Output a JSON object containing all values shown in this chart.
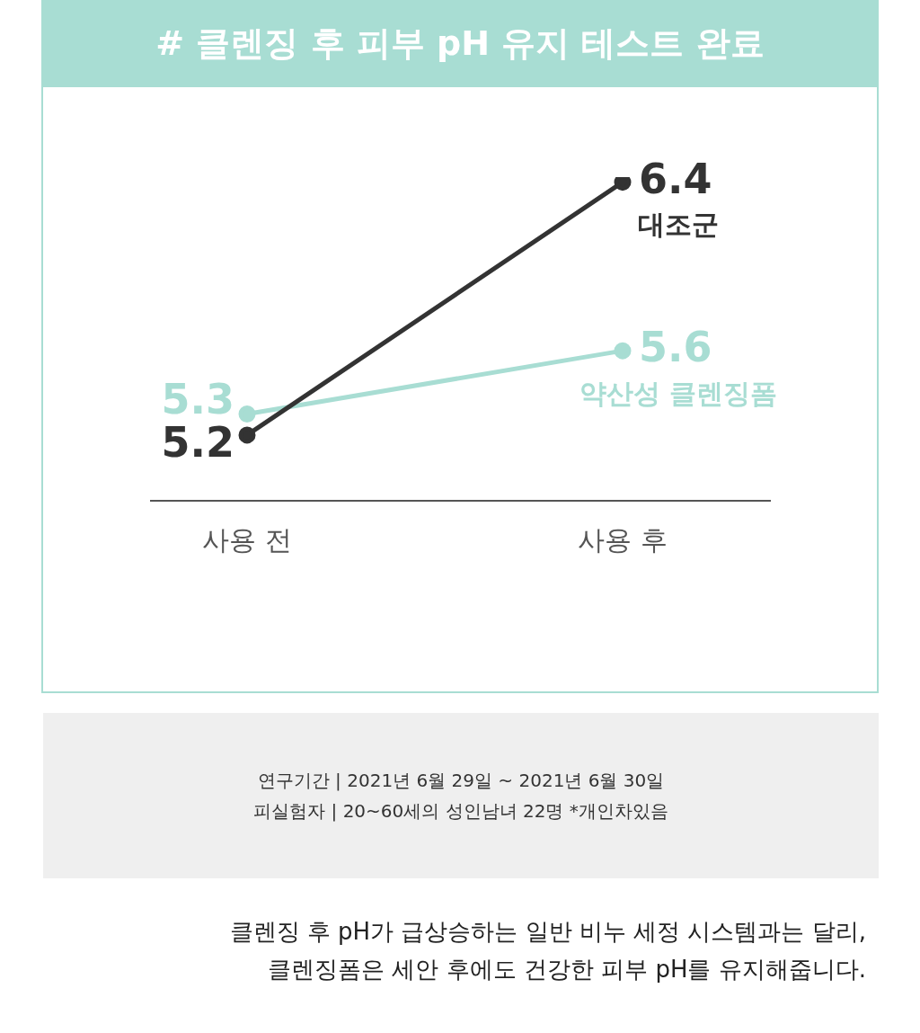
{
  "chart_data": {
    "type": "line",
    "title": "# 클렌징 후 피부 pH 유지 테스트 완료",
    "categories": [
      "사용 전",
      "사용 후"
    ],
    "series": [
      {
        "name": "대조군",
        "color": "#333333",
        "values": [
          5.2,
          6.4
        ]
      },
      {
        "name": "약산성 클렌징폼",
        "color": "#a8ddd3",
        "values": [
          5.3,
          5.6
        ]
      }
    ],
    "data_labels": true,
    "marker": "circle",
    "grid": false,
    "legend": false,
    "line_style": "solid",
    "annotations": [
      "연구기간 | 2021년 6월 29일 ~ 2021년 6월 30일",
      "피실험자 | 20~60세의 성인남녀 22명    *개인차있음",
      "클렌징 후 pH가 급상승하는 일반 비누 세정 시스템과는 달리,",
      "클렌징폼은 세안 후에도 건강한 피부 pH를 유지해줍니다."
    ]
  }
}
